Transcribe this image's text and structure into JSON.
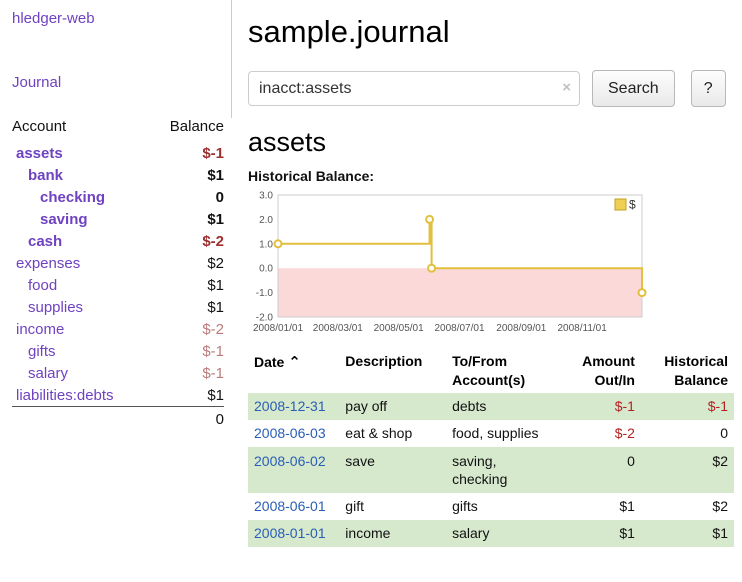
{
  "sidebar": {
    "app_title": "hledger-web",
    "journal_label": "Journal",
    "accounts": {
      "headers": [
        "Account",
        "Balance"
      ],
      "rows": [
        {
          "name": "assets",
          "balance": "$-1",
          "depth": 0,
          "bold": true,
          "name_style": "neg-strong",
          "balance_style": "neg-strong"
        },
        {
          "name": "bank",
          "balance": "$1",
          "depth": 1,
          "bold": true,
          "name_style": "link",
          "balance_style": "normal"
        },
        {
          "name": "checking",
          "balance": "0",
          "depth": 2,
          "bold": true,
          "name_style": "link",
          "balance_style": "normal"
        },
        {
          "name": "saving",
          "balance": "$1",
          "depth": 2,
          "bold": true,
          "name_style": "link",
          "balance_style": "normal"
        },
        {
          "name": "cash",
          "balance": "$-2",
          "depth": 1,
          "bold": true,
          "name_style": "neg-strong",
          "balance_style": "neg-strong"
        },
        {
          "name": "expenses",
          "balance": "$2",
          "depth": 0,
          "bold": false,
          "name_style": "link",
          "balance_style": "normal"
        },
        {
          "name": "food",
          "balance": "$1",
          "depth": 1,
          "bold": false,
          "name_style": "link",
          "balance_style": "normal"
        },
        {
          "name": "supplies",
          "balance": "$1",
          "depth": 1,
          "bold": false,
          "name_style": "link",
          "balance_style": "normal"
        },
        {
          "name": "income",
          "balance": "$-2",
          "depth": 0,
          "bold": false,
          "name_style": "neg-muted",
          "balance_style": "neg-muted"
        },
        {
          "name": "gifts",
          "balance": "$-1",
          "depth": 1,
          "bold": false,
          "name_style": "neg-muted",
          "balance_style": "neg-muted"
        },
        {
          "name": "salary",
          "balance": "$-1",
          "depth": 1,
          "bold": false,
          "name_style": "neg-muted",
          "balance_style": "neg-muted"
        },
        {
          "name": "liabilities:debts",
          "balance": "$1",
          "depth": 0,
          "bold": false,
          "name_style": "link",
          "balance_style": "normal"
        }
      ],
      "total": "0"
    }
  },
  "main": {
    "title": "sample.journal",
    "search": {
      "value": "inacct:assets",
      "clear_icon": "×",
      "button_label": "Search",
      "help_label": "?"
    },
    "account_heading": "assets",
    "register": {
      "headers": {
        "date": "Date",
        "sort_icon": "⌃",
        "description": "Description",
        "tofrom_line1": "To/From",
        "tofrom_line2": "Account(s)",
        "amount_line1": "Amount",
        "amount_line2": "Out/In",
        "balance_line1": "Historical",
        "balance_line2": "Balance"
      },
      "rows": [
        {
          "date": "2008-12-31",
          "description": "pay off",
          "accounts": "debts",
          "amount": "$-1",
          "amount_negative": true,
          "balance": "$-1",
          "balance_negative": true
        },
        {
          "date": "2008-06-03",
          "description": "eat & shop",
          "accounts": "food, supplies",
          "amount": "$-2",
          "amount_negative": true,
          "balance": "0",
          "balance_negative": false
        },
        {
          "date": "2008-06-02",
          "description": "save",
          "accounts": "saving, checking",
          "amount": "0",
          "amount_negative": false,
          "balance": "$2",
          "balance_negative": false
        },
        {
          "date": "2008-06-01",
          "description": "gift",
          "accounts": "gifts",
          "amount": "$1",
          "amount_negative": false,
          "balance": "$2",
          "balance_negative": false
        },
        {
          "date": "2008-01-01",
          "description": "income",
          "accounts": "salary",
          "amount": "$1",
          "amount_negative": false,
          "balance": "$1",
          "balance_negative": false
        }
      ]
    }
  },
  "chart_data": {
    "type": "line",
    "step": true,
    "title": "Historical Balance:",
    "series": [
      {
        "name": "$",
        "points": [
          [
            "2008-01-01",
            1.0
          ],
          [
            "2008-06-01",
            2.0
          ],
          [
            "2008-06-03",
            0.0
          ],
          [
            "2008-12-31",
            -1.0
          ]
        ]
      }
    ],
    "ylim": [
      -2.0,
      3.0
    ],
    "yticks": [
      "3.0",
      "2.0",
      "1.0",
      "0.0",
      "-1.0",
      "-2.0"
    ],
    "xticks": [
      "2008/01/01",
      "2008/03/01",
      "2008/05/01",
      "2008/07/01",
      "2008/09/01",
      "2008/11/01"
    ],
    "x_range": [
      "2008-01-01",
      "2008-12-31"
    ],
    "legend": {
      "label": "$",
      "position": "top-right"
    },
    "colors": {
      "line": "#e2bf3c",
      "marker_fill": "#ffffff",
      "legend_fill": "#f0cf57",
      "legend_border": "#c3a023",
      "negative_region": "#fbd9d9",
      "plot_border": "#cccccc",
      "tick_text": "#555555"
    }
  },
  "colors": {
    "link_purple": "#6f42c1",
    "negative_strong": "#9e2f2f",
    "negative_muted": "#ba7b7b",
    "date_link_blue": "#2a5db5",
    "amount_negative_red": "#b22222",
    "row_green": "#d6e9cd"
  }
}
